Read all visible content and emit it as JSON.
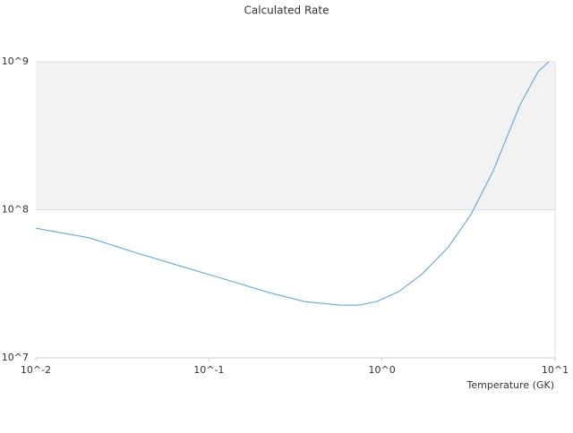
{
  "chart_data": {
    "type": "line",
    "title": "Calculated Rate",
    "x_label": "Temperature (GK)",
    "x": [
      0.01,
      0.0205,
      0.0372,
      0.0674,
      0.122,
      0.222,
      0.358,
      0.578,
      0.733,
      0.931,
      1.25,
      1.69,
      2.42,
      3.26,
      4.39,
      6.28,
      7.98,
      9.2
    ],
    "series": [
      {
        "name": "Calculated Rate",
        "color": "#4f9fe0",
        "values": [
          75000000,
          64500000,
          51600000,
          41900000,
          34100000,
          27600000,
          24000000,
          22700000,
          22700000,
          24000000,
          28000000,
          36500000,
          56100000,
          92700000,
          183000000,
          513000000,
          859000000,
          1000000000
        ]
      }
    ],
    "xlim": [
      0.01,
      10
    ],
    "ylim": [
      10000000,
      1000000000
    ],
    "xticks": [
      {
        "value": 0.01,
        "label": "10^-2"
      },
      {
        "value": 0.1,
        "label": "10^-1"
      },
      {
        "value": 1,
        "label": "10^0"
      },
      {
        "value": 10,
        "label": "10^1"
      }
    ],
    "yticks": [
      {
        "value": 10000000,
        "label": "10^7"
      },
      {
        "value": 100000000,
        "label": "10^8"
      },
      {
        "value": 1000000000,
        "label": "10^9"
      }
    ],
    "xscale": "log",
    "yscale": "log",
    "grid": true
  }
}
